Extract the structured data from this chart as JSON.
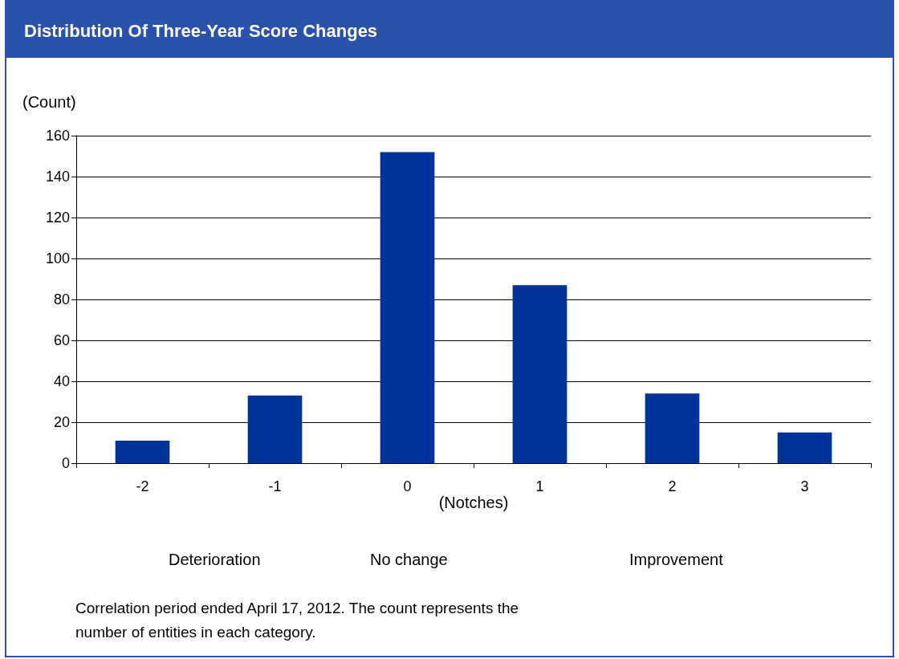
{
  "chart_data": {
    "type": "bar",
    "title": "Distribution Of Three-Year Score Changes",
    "categories": [
      "-2",
      "-1",
      "0",
      "1",
      "2",
      "3"
    ],
    "values": [
      11,
      33,
      152,
      87,
      34,
      15
    ],
    "color": "#003399",
    "xlabel": "(Notches)",
    "ylabel": "(Count)",
    "ylim": [
      0,
      160
    ],
    "yticks": [
      0,
      20,
      40,
      60,
      80,
      100,
      120,
      140,
      160
    ],
    "grid": "y",
    "annotations": [
      "Deterioration",
      "No change",
      "Improvement",
      "Correlation period ended April 17, 2012. The count represents the number of entities in each category."
    ]
  }
}
